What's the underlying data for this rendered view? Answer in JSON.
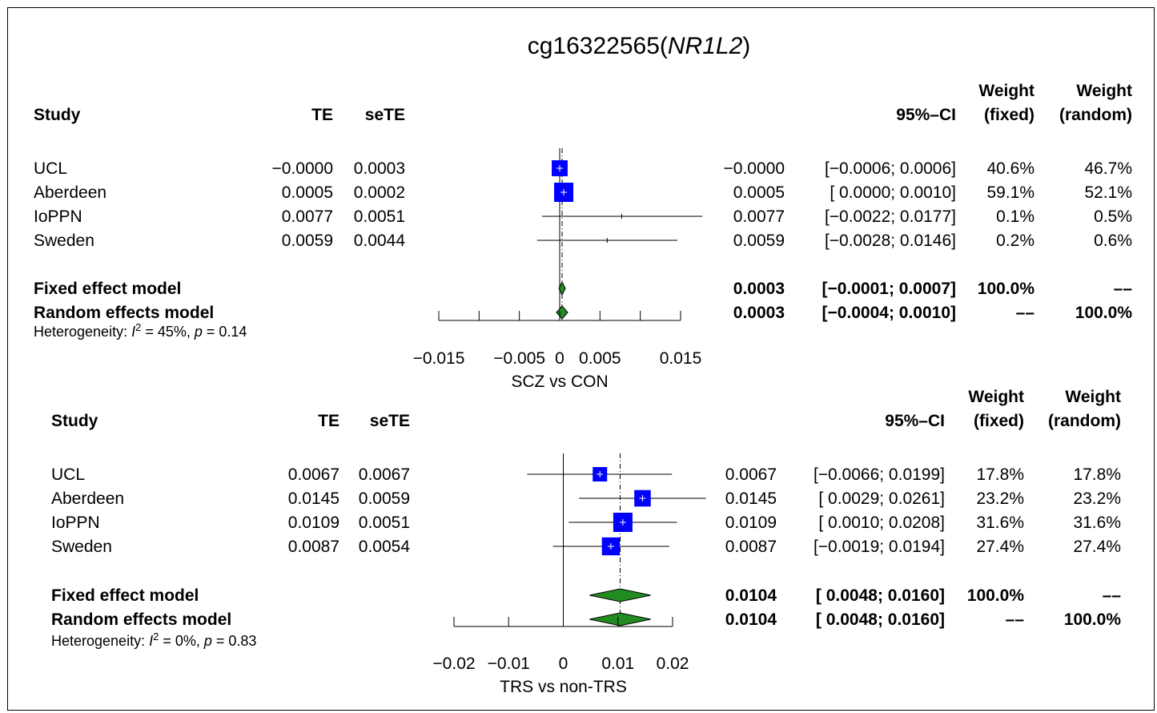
{
  "chart_data": [
    {
      "type": "forest",
      "title_main": "cg16322565(",
      "title_gene": "NR1L2",
      "title_close": ")",
      "headers": {
        "study": "Study",
        "te": "TE",
        "sete": "seTE",
        "ci": "95%–CI",
        "weight_word": "Weight",
        "fixed": "(fixed)",
        "random": "(random)"
      },
      "studies": [
        {
          "name": "UCL",
          "te": "−0.0000",
          "sete": "0.0003",
          "est": "−0.0000",
          "ci": "[−0.0006; 0.0006]",
          "w_fixed": "40.6%",
          "w_random": "46.7%",
          "value": -0.0,
          "lower": -0.0006,
          "upper": 0.0006,
          "weight": 40.6
        },
        {
          "name": "Aberdeen",
          "te": "0.0005",
          "sete": "0.0002",
          "est": "0.0005",
          "ci": "[ 0.0000; 0.0010]",
          "w_fixed": "59.1%",
          "w_random": "52.1%",
          "value": 0.0005,
          "lower": 0.0,
          "upper": 0.001,
          "weight": 59.1
        },
        {
          "name": "IoPPN",
          "te": "0.0077",
          "sete": "0.0051",
          "est": "0.0077",
          "ci": "[−0.0022; 0.0177]",
          "w_fixed": "0.1%",
          "w_random": "0.5%",
          "value": 0.0077,
          "lower": -0.0022,
          "upper": 0.0177,
          "weight": 0.1
        },
        {
          "name": "Sweden",
          "te": "0.0059",
          "sete": "0.0044",
          "est": "0.0059",
          "ci": "[−0.0028; 0.0146]",
          "w_fixed": "0.2%",
          "w_random": "0.6%",
          "value": 0.0059,
          "lower": -0.0028,
          "upper": 0.0146,
          "weight": 0.2
        }
      ],
      "models": [
        {
          "name": "Fixed effect model",
          "est": "0.0003",
          "ci": "[−0.0001; 0.0007]",
          "w_fixed": "100.0%",
          "w_random": "––",
          "value": 0.0003,
          "lower": -0.0001,
          "upper": 0.0007
        },
        {
          "name": "Random effects model",
          "est": "0.0003",
          "ci": "[−0.0004; 0.0010]",
          "w_fixed": "––",
          "w_random": "100.0%",
          "value": 0.0003,
          "lower": -0.0004,
          "upper": 0.001
        }
      ],
      "heterogeneity": {
        "prefix": "Heterogeneity: ",
        "i": "I",
        "sup": "2",
        "mid": " = 45%, ",
        "p": "p",
        "tail": " = 0.14"
      },
      "xlabel": "SCZ vs CON",
      "xlim": [
        -0.015,
        0.015
      ],
      "ticks": [
        -0.015,
        -0.01,
        -0.005,
        0,
        0.005,
        0.01,
        0.015
      ],
      "tick_labels": [
        "−0.015",
        "",
        "−0.005",
        "0",
        "0.005",
        "",
        "0.015"
      ]
    },
    {
      "type": "forest",
      "headers": {
        "study": "Study",
        "te": "TE",
        "sete": "seTE",
        "ci": "95%–CI",
        "weight_word": "Weight",
        "fixed": "(fixed)",
        "random": "(random)"
      },
      "studies": [
        {
          "name": "UCL",
          "te": "0.0067",
          "sete": "0.0067",
          "est": "0.0067",
          "ci": "[−0.0066; 0.0199]",
          "w_fixed": "17.8%",
          "w_random": "17.8%",
          "value": 0.0067,
          "lower": -0.0066,
          "upper": 0.0199,
          "weight": 17.8
        },
        {
          "name": "Aberdeen",
          "te": "0.0145",
          "sete": "0.0059",
          "est": "0.0145",
          "ci": "[ 0.0029; 0.0261]",
          "w_fixed": "23.2%",
          "w_random": "23.2%",
          "value": 0.0145,
          "lower": 0.0029,
          "upper": 0.0261,
          "weight": 23.2
        },
        {
          "name": "IoPPN",
          "te": "0.0109",
          "sete": "0.0051",
          "est": "0.0109",
          "ci": "[ 0.0010; 0.0208]",
          "w_fixed": "31.6%",
          "w_random": "31.6%",
          "value": 0.0109,
          "lower": 0.001,
          "upper": 0.0208,
          "weight": 31.6
        },
        {
          "name": "Sweden",
          "te": "0.0087",
          "sete": "0.0054",
          "est": "0.0087",
          "ci": "[−0.0019; 0.0194]",
          "w_fixed": "27.4%",
          "w_random": "27.4%",
          "value": 0.0087,
          "lower": -0.0019,
          "upper": 0.0194,
          "weight": 27.4
        }
      ],
      "models": [
        {
          "name": "Fixed effect model",
          "est": "0.0104",
          "ci": "[ 0.0048; 0.0160]",
          "w_fixed": "100.0%",
          "w_random": "––",
          "value": 0.0104,
          "lower": 0.0048,
          "upper": 0.016
        },
        {
          "name": "Random effects model",
          "est": "0.0104",
          "ci": "[ 0.0048; 0.0160]",
          "w_fixed": "––",
          "w_random": "100.0%",
          "value": 0.0104,
          "lower": 0.0048,
          "upper": 0.016
        }
      ],
      "heterogeneity": {
        "prefix": "Heterogeneity: ",
        "i": "I",
        "sup": "2",
        "mid": " = 0%, ",
        "p": "p",
        "tail": " = 0.83"
      },
      "xlabel": "TRS vs non-TRS",
      "xlim": [
        -0.02,
        0.02
      ],
      "ticks": [
        -0.02,
        -0.01,
        0,
        0.01,
        0.02
      ],
      "tick_labels": [
        "−0.02",
        "−0.01",
        "0",
        "0.01",
        "0.02"
      ]
    }
  ],
  "colors": {
    "square": "#0000ff",
    "diamond": "#228b22",
    "line": "#000000"
  }
}
